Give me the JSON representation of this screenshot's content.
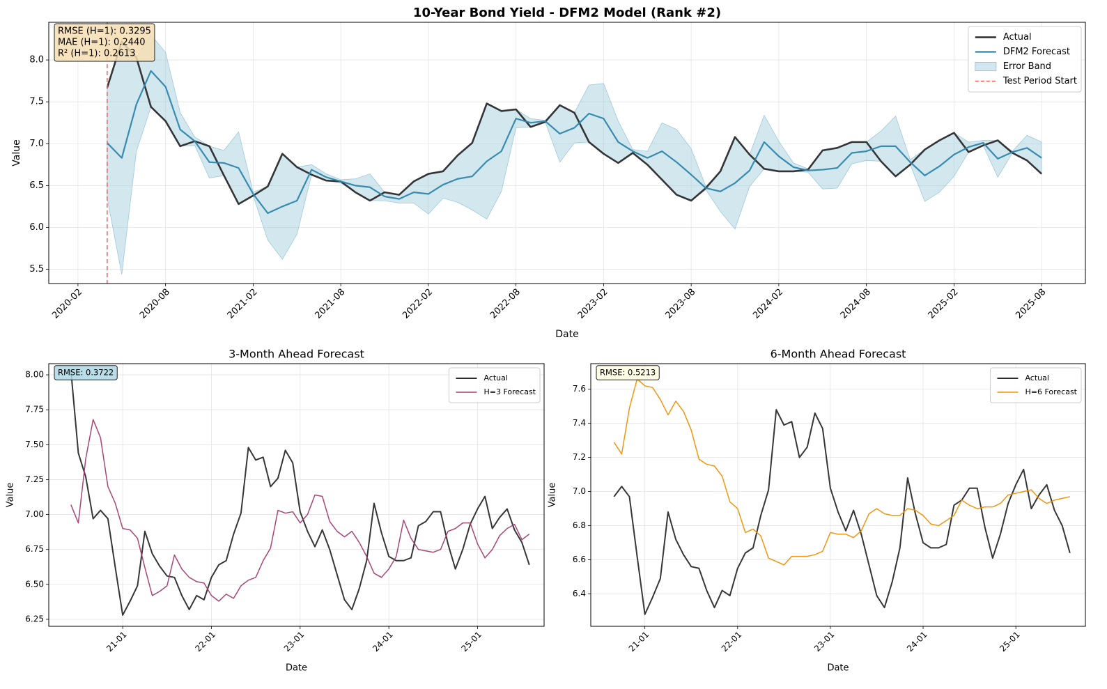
{
  "chart_data": [
    {
      "type": "line",
      "title": "10-Year Bond Yield - DFM2 Model (Rank #2)",
      "xlabel": "Date",
      "ylabel": "Value",
      "x": [
        "2020-04",
        "2020-05",
        "2020-06",
        "2020-07",
        "2020-08",
        "2020-09",
        "2020-10",
        "2020-11",
        "2020-12",
        "2021-01",
        "2021-02",
        "2021-03",
        "2021-04",
        "2021-05",
        "2021-06",
        "2021-07",
        "2021-08",
        "2021-09",
        "2021-10",
        "2021-11",
        "2021-12",
        "2022-01",
        "2022-02",
        "2022-03",
        "2022-04",
        "2022-05",
        "2022-06",
        "2022-07",
        "2022-08",
        "2022-09",
        "2022-10",
        "2022-11",
        "2022-12",
        "2023-01",
        "2023-02",
        "2023-03",
        "2023-04",
        "2023-05",
        "2023-06",
        "2023-07",
        "2023-08",
        "2023-09",
        "2023-10",
        "2023-11",
        "2023-12",
        "2024-01",
        "2024-02",
        "2024-03",
        "2024-04",
        "2024-05",
        "2024-06",
        "2024-07",
        "2024-08",
        "2024-09",
        "2024-10",
        "2024-11",
        "2024-12",
        "2025-01",
        "2025-02",
        "2025-03",
        "2025-04",
        "2025-05",
        "2025-06",
        "2025-07",
        "2025-08"
      ],
      "series": [
        {
          "name": "Actual",
          "color": "#2b2b2b",
          "values": [
            7.67,
            8.22,
            8.03,
            7.44,
            7.27,
            6.97,
            7.03,
            6.97,
            6.62,
            6.28,
            6.38,
            6.49,
            6.88,
            6.72,
            6.63,
            6.56,
            6.55,
            6.42,
            6.32,
            6.42,
            6.39,
            6.55,
            6.64,
            6.67,
            6.86,
            7.01,
            7.48,
            7.39,
            7.41,
            7.2,
            7.26,
            7.46,
            7.37,
            7.02,
            6.88,
            6.77,
            6.89,
            6.75,
            6.57,
            6.39,
            6.32,
            6.47,
            6.67,
            7.08,
            6.87,
            6.7,
            6.67,
            6.67,
            6.69,
            6.92,
            6.95,
            7.02,
            7.02,
            6.79,
            6.61,
            6.75,
            6.93,
            7.04,
            7.13,
            6.9,
            6.98,
            7.04,
            6.89,
            6.8,
            6.64
          ]
        },
        {
          "name": "DFM2 Forecast",
          "color": "#2e86ab",
          "values": [
            7.01,
            6.83,
            7.47,
            7.87,
            7.68,
            7.17,
            7.03,
            6.78,
            6.77,
            6.71,
            6.4,
            6.17,
            6.25,
            6.32,
            6.69,
            6.6,
            6.55,
            6.5,
            6.48,
            6.37,
            6.34,
            6.42,
            6.4,
            6.51,
            6.58,
            6.61,
            6.79,
            6.91,
            7.3,
            7.25,
            7.27,
            7.12,
            7.19,
            7.36,
            7.3,
            7.02,
            6.91,
            6.83,
            6.91,
            6.78,
            6.63,
            6.47,
            6.43,
            6.53,
            6.68,
            7.02,
            6.85,
            6.72,
            6.68,
            6.69,
            6.71,
            6.89,
            6.91,
            6.97,
            6.97,
            6.78,
            6.62,
            6.73,
            6.87,
            6.96,
            7.01,
            6.82,
            6.9,
            6.95,
            6.83
          ]
        }
      ],
      "band": {
        "name": "Error Band",
        "color": "#9ec9dc",
        "upper": [
          7.67,
          8.22,
          8.03,
          8.3,
          8.09,
          7.37,
          7.08,
          6.97,
          6.92,
          7.14,
          6.42,
          6.49,
          6.88,
          6.72,
          6.75,
          6.64,
          6.57,
          6.58,
          6.64,
          6.42,
          6.39,
          6.55,
          6.64,
          6.67,
          6.86,
          7.01,
          7.48,
          7.39,
          7.41,
          7.3,
          7.28,
          7.46,
          7.37,
          7.7,
          7.72,
          7.27,
          6.93,
          6.91,
          7.25,
          7.17,
          6.94,
          6.49,
          6.67,
          7.08,
          6.87,
          7.34,
          7.03,
          6.77,
          6.7,
          6.92,
          6.95,
          7.02,
          7.02,
          7.15,
          7.33,
          6.81,
          6.93,
          7.04,
          7.13,
          7.02,
          7.04,
          7.04,
          6.91,
          7.1,
          7.02
        ],
        "lower": [
          6.35,
          5.44,
          6.91,
          7.44,
          7.27,
          6.97,
          6.98,
          6.59,
          6.62,
          6.28,
          6.38,
          5.85,
          5.62,
          5.92,
          6.63,
          6.56,
          6.53,
          6.42,
          6.32,
          6.32,
          6.29,
          6.29,
          6.16,
          6.35,
          6.3,
          6.21,
          6.1,
          6.43,
          7.19,
          7.2,
          7.26,
          6.78,
          7.01,
          7.02,
          6.88,
          6.77,
          6.89,
          6.75,
          6.57,
          6.39,
          6.32,
          6.45,
          6.19,
          5.98,
          6.49,
          6.7,
          6.67,
          6.67,
          6.66,
          6.46,
          6.47,
          6.76,
          6.8,
          6.79,
          6.61,
          6.75,
          6.31,
          6.42,
          6.61,
          6.9,
          6.98,
          6.6,
          6.89,
          6.8,
          6.64
        ]
      },
      "vline": {
        "name": "Test Period Start",
        "color": "#ff5a5a",
        "x": "2020-04"
      },
      "xlim": [
        "2019-12",
        "2025-11"
      ],
      "xticks": [
        "2020-02",
        "2020-08",
        "2021-02",
        "2021-08",
        "2022-02",
        "2022-08",
        "2023-02",
        "2023-08",
        "2024-02",
        "2024-08",
        "2025-02",
        "2025-08"
      ],
      "ylim": [
        5.33,
        8.45
      ],
      "yticks": [
        5.5,
        {
          "value": 6,
          "label": "6.0"
        },
        6.5,
        {
          "value": 7,
          "label": "7.0"
        },
        7.5,
        {
          "value": 8,
          "label": "8.0"
        }
      ],
      "grid": true,
      "legend": "upper right",
      "annotation": [
        "RMSE (H=1): 0.3295",
        "MAE (H=1): 0.2440",
        "R² (H=1): 0.2613"
      ],
      "annotation_color": "#f5deb3"
    },
    {
      "type": "line",
      "title": "3-Month Ahead Forecast",
      "xlabel": "Date",
      "ylabel": "Value",
      "x": [
        "2020-06",
        "2020-07",
        "2020-08",
        "2020-09",
        "2020-10",
        "2020-11",
        "2020-12",
        "2021-01",
        "2021-02",
        "2021-03",
        "2021-04",
        "2021-05",
        "2021-06",
        "2021-07",
        "2021-08",
        "2021-09",
        "2021-10",
        "2021-11",
        "2021-12",
        "2022-01",
        "2022-02",
        "2022-03",
        "2022-04",
        "2022-05",
        "2022-06",
        "2022-07",
        "2022-08",
        "2022-09",
        "2022-10",
        "2022-11",
        "2022-12",
        "2023-01",
        "2023-02",
        "2023-03",
        "2023-04",
        "2023-05",
        "2023-06",
        "2023-07",
        "2023-08",
        "2023-09",
        "2023-10",
        "2023-11",
        "2023-12",
        "2024-01",
        "2024-02",
        "2024-03",
        "2024-04",
        "2024-05",
        "2024-06",
        "2024-07",
        "2024-08",
        "2024-09",
        "2024-10",
        "2024-11",
        "2024-12",
        "2025-01",
        "2025-02",
        "2025-03",
        "2025-04",
        "2025-05",
        "2025-06",
        "2025-07",
        "2025-08"
      ],
      "series": [
        {
          "name": "Actual",
          "color": "#2b2b2b",
          "values": [
            8.03,
            7.44,
            7.27,
            6.97,
            7.03,
            6.97,
            6.62,
            6.28,
            6.38,
            6.49,
            6.88,
            6.72,
            6.63,
            6.56,
            6.55,
            6.42,
            6.32,
            6.42,
            6.39,
            6.55,
            6.64,
            6.67,
            6.86,
            7.01,
            7.48,
            7.39,
            7.41,
            7.2,
            7.26,
            7.46,
            7.37,
            7.02,
            6.88,
            6.77,
            6.89,
            6.75,
            6.57,
            6.39,
            6.32,
            6.47,
            6.67,
            7.08,
            6.87,
            6.7,
            6.67,
            6.67,
            6.69,
            6.92,
            6.95,
            7.02,
            7.02,
            6.79,
            6.61,
            6.75,
            6.93,
            7.04,
            7.13,
            6.9,
            6.98,
            7.04,
            6.89,
            6.8,
            6.64
          ]
        },
        {
          "name": "H=3 Forecast",
          "color": "#a23b72",
          "values": [
            7.07,
            6.94,
            7.4,
            7.68,
            7.55,
            7.2,
            7.08,
            6.9,
            6.89,
            6.83,
            6.62,
            6.42,
            6.45,
            6.49,
            6.71,
            6.61,
            6.55,
            6.52,
            6.51,
            6.42,
            6.38,
            6.43,
            6.4,
            6.49,
            6.53,
            6.55,
            6.67,
            6.76,
            7.03,
            7.01,
            7.02,
            6.94,
            7.0,
            7.14,
            7.13,
            6.95,
            6.88,
            6.84,
            6.88,
            6.8,
            6.7,
            6.58,
            6.55,
            6.61,
            6.7,
            6.96,
            6.83,
            6.75,
            6.74,
            6.73,
            6.75,
            6.88,
            6.9,
            6.94,
            6.94,
            6.79,
            6.69,
            6.75,
            6.85,
            6.9,
            6.93,
            6.82,
            6.86
          ]
        }
      ],
      "xlim": [
        "2020-03",
        "2025-10"
      ],
      "xticks": [
        {
          "value": "2021-01",
          "label": "21-01"
        },
        {
          "value": "2022-01",
          "label": "22-01"
        },
        {
          "value": "2023-01",
          "label": "23-01"
        },
        {
          "value": "2024-01",
          "label": "24-01"
        },
        {
          "value": "2025-01",
          "label": "25-01"
        }
      ],
      "ylim": [
        6.2,
        8.08
      ],
      "yticks": [
        6.25,
        {
          "value": 6.5,
          "label": "6.50"
        },
        6.75,
        {
          "value": 7,
          "label": "7.00"
        },
        7.25,
        {
          "value": 7.5,
          "label": "7.50"
        },
        7.75,
        {
          "value": 8,
          "label": "8.00"
        }
      ],
      "grid": true,
      "legend": "upper right",
      "annotation": [
        "RMSE: 0.3722"
      ],
      "annotation_color": "#add8e6"
    },
    {
      "type": "line",
      "title": "6-Month Ahead Forecast",
      "xlabel": "Date",
      "ylabel": "Value",
      "x": [
        "2020-09",
        "2020-10",
        "2020-11",
        "2020-12",
        "2021-01",
        "2021-02",
        "2021-03",
        "2021-04",
        "2021-05",
        "2021-06",
        "2021-07",
        "2021-08",
        "2021-09",
        "2021-10",
        "2021-11",
        "2021-12",
        "2022-01",
        "2022-02",
        "2022-03",
        "2022-04",
        "2022-05",
        "2022-06",
        "2022-07",
        "2022-08",
        "2022-09",
        "2022-10",
        "2022-11",
        "2022-12",
        "2023-01",
        "2023-02",
        "2023-03",
        "2023-04",
        "2023-05",
        "2023-06",
        "2023-07",
        "2023-08",
        "2023-09",
        "2023-10",
        "2023-11",
        "2023-12",
        "2024-01",
        "2024-02",
        "2024-03",
        "2024-04",
        "2024-05",
        "2024-06",
        "2024-07",
        "2024-08",
        "2024-09",
        "2024-10",
        "2024-11",
        "2024-12",
        "2025-01",
        "2025-02",
        "2025-03",
        "2025-04",
        "2025-05",
        "2025-06",
        "2025-07",
        "2025-08"
      ],
      "series": [
        {
          "name": "Actual",
          "color": "#2b2b2b",
          "values": [
            6.97,
            7.03,
            6.97,
            6.62,
            6.28,
            6.38,
            6.49,
            6.88,
            6.72,
            6.63,
            6.56,
            6.55,
            6.42,
            6.32,
            6.42,
            6.39,
            6.55,
            6.64,
            6.67,
            6.86,
            7.01,
            7.48,
            7.39,
            7.41,
            7.2,
            7.26,
            7.46,
            7.37,
            7.02,
            6.88,
            6.77,
            6.89,
            6.75,
            6.57,
            6.39,
            6.32,
            6.47,
            6.67,
            7.08,
            6.87,
            6.7,
            6.67,
            6.67,
            6.69,
            6.92,
            6.95,
            7.02,
            7.02,
            6.79,
            6.61,
            6.75,
            6.93,
            7.04,
            7.13,
            6.9,
            6.98,
            7.04,
            6.89,
            6.8,
            6.64
          ]
        },
        {
          "name": "H=6 Forecast",
          "color": "#f18f01",
          "values": [
            7.29,
            7.22,
            7.49,
            7.66,
            7.62,
            7.61,
            7.54,
            7.45,
            7.53,
            7.47,
            7.36,
            7.19,
            7.16,
            7.15,
            7.09,
            6.94,
            6.9,
            6.76,
            6.78,
            6.74,
            6.61,
            6.59,
            6.57,
            6.62,
            6.62,
            6.62,
            6.63,
            6.65,
            6.76,
            6.75,
            6.75,
            6.73,
            6.77,
            6.87,
            6.9,
            6.87,
            6.86,
            6.86,
            6.9,
            6.89,
            6.86,
            6.81,
            6.8,
            6.83,
            6.86,
            6.95,
            6.92,
            6.9,
            6.91,
            6.91,
            6.93,
            6.98,
            6.99,
            7.0,
            7.01,
            6.96,
            6.93,
            6.95,
            6.96,
            6.97
          ]
        }
      ],
      "xlim": [
        "2020-06",
        "2025-10"
      ],
      "xticks": [
        {
          "value": "2021-01",
          "label": "21-01"
        },
        {
          "value": "2022-01",
          "label": "22-01"
        },
        {
          "value": "2023-01",
          "label": "23-01"
        },
        {
          "value": "2024-01",
          "label": "24-01"
        },
        {
          "value": "2025-01",
          "label": "25-01"
        }
      ],
      "ylim": [
        6.21,
        7.75
      ],
      "yticks": [
        6.4,
        6.6,
        6.8,
        {
          "value": 7,
          "label": "7.0"
        },
        7.2,
        7.4,
        7.6
      ],
      "grid": true,
      "legend": "upper right",
      "annotation": [
        "RMSE: 0.5213"
      ],
      "annotation_color": "#fffbe0"
    }
  ]
}
